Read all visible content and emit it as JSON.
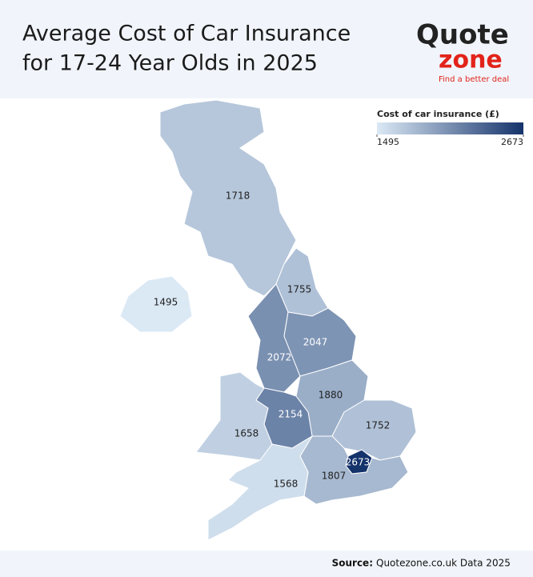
{
  "header": {
    "title": [
      "Average Cost of Car Insurance",
      "for 17-24 Year Olds in 2025"
    ],
    "logo": {
      "word1": "Quote",
      "word2": "zone",
      "tagline": "Find a better deal"
    }
  },
  "chart_data": {
    "type": "choropleth",
    "values": [
      1718,
      1755,
      1495,
      2072,
      2047,
      1880,
      2154,
      1658,
      1752,
      2673,
      1807,
      1568
    ],
    "legend_title": "Cost of car insurance (£)",
    "color_range": [
      "#dbe9f5",
      "#15336b"
    ],
    "colorbar_ticks": [
      1495,
      2673
    ]
  },
  "footer": {
    "source_label": "Source:",
    "source_text": "Quotezone.co.uk Data 2025"
  }
}
